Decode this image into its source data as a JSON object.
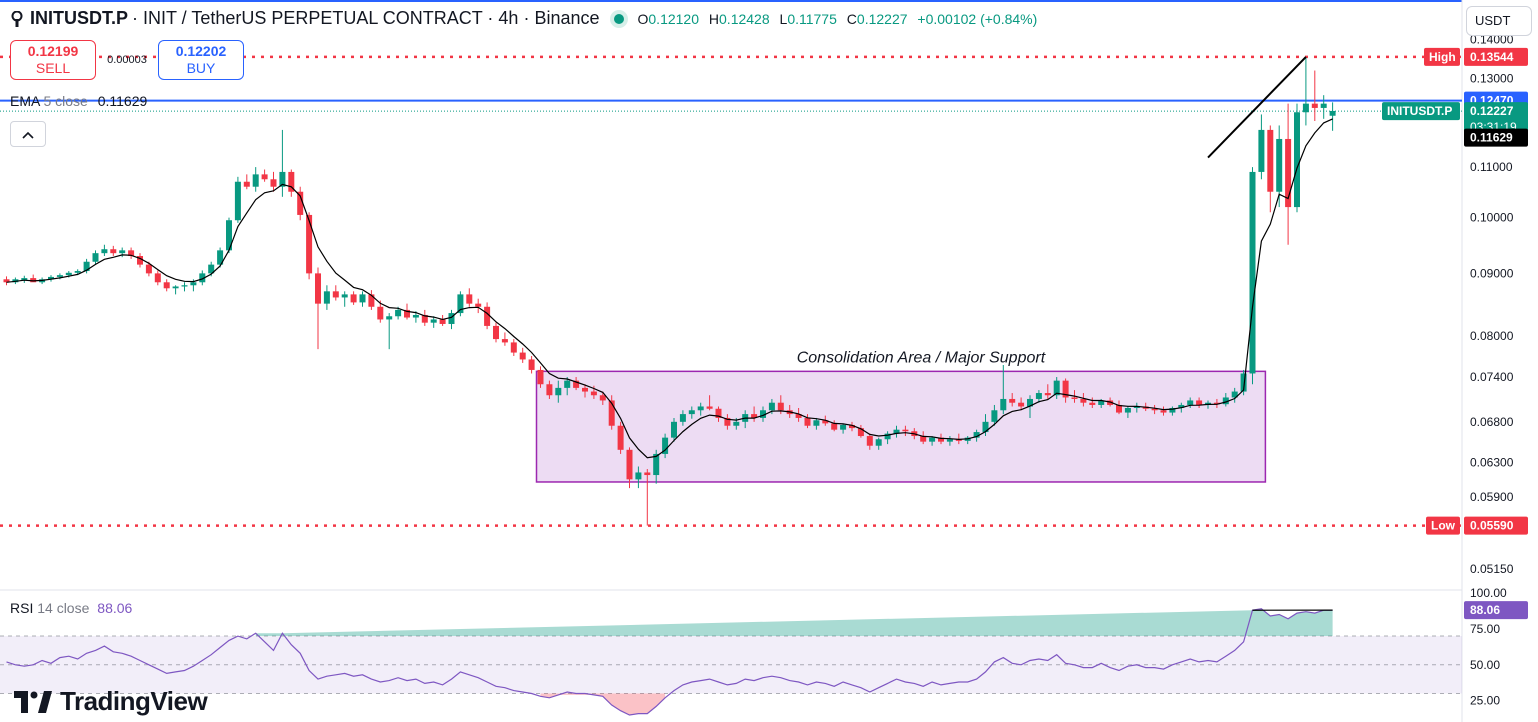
{
  "header": {
    "symbol": "INITUSDT.P",
    "description": "· INIT / TetherUS PERPETUAL CONTRACT · 4h · Binance",
    "open_label": "O",
    "open": "0.12120",
    "high_label": "H",
    "high": "0.12428",
    "low_label": "L",
    "low": "0.11775",
    "close_label": "C",
    "close": "0.12227",
    "change": "+0.00102 (+0.84%)"
  },
  "trade": {
    "sell_price": "0.12199",
    "sell_label": "SELL",
    "spread": "0.00003",
    "buy_price": "0.12202",
    "buy_label": "BUY"
  },
  "currency": "USDT",
  "ema_legend": {
    "name": "EMA",
    "param": "5 close",
    "value": "0.11629"
  },
  "rsi_legend": {
    "name": "RSI",
    "param": "14 close",
    "value": "88.06"
  },
  "brand": "TradingView",
  "colors": {
    "up": "#089981",
    "down": "#f23645",
    "ema": "#000000",
    "rsi": "#7e57c2",
    "box_border": "#9c27b0",
    "box_fill": "#e1c4eb",
    "blue_line": "#2962ff"
  },
  "chart_data": [
    {
      "type": "candlestick",
      "title": "INITUSDT.P · 4h · Binance",
      "y_axis_ticks": [
        "0.14000",
        "0.13000",
        "0.11000",
        "0.10000",
        "0.09000",
        "0.08000",
        "0.07400",
        "0.06800",
        "0.06300",
        "0.05900",
        "0.05150"
      ],
      "ylim": [
        0.0495,
        0.1425
      ],
      "price_labels": [
        {
          "label": "High",
          "value": "0.13544",
          "style": "high",
          "price": 0.13544
        },
        {
          "label": "",
          "value": "0.12470",
          "style": "blue",
          "price": 0.1247
        },
        {
          "label": "INITUSDT.P",
          "value": "0.12227",
          "sub": "03:31:19",
          "style": "last",
          "price": 0.12227
        },
        {
          "label": "",
          "value": "0.11629",
          "style": "ema",
          "price": 0.11629
        },
        {
          "label": "Low",
          "value": "0.05590",
          "style": "low",
          "price": 0.0559
        }
      ],
      "annotations": [
        {
          "text": "Consolidation Area / Major Support",
          "type": "rectangle",
          "price_top": 0.0748,
          "price_bottom": 0.0607,
          "bar_start": 60,
          "bar_end": 141
        }
      ],
      "candles": [
        [
          0.089,
          0.0895,
          0.088,
          0.0885
        ],
        [
          0.0885,
          0.0893,
          0.0882,
          0.089
        ],
        [
          0.0888,
          0.0896,
          0.0884,
          0.0892
        ],
        [
          0.0892,
          0.0898,
          0.0888,
          0.0885
        ],
        [
          0.0885,
          0.0893,
          0.0882,
          0.089
        ],
        [
          0.089,
          0.0897,
          0.0886,
          0.0894
        ],
        [
          0.0894,
          0.09,
          0.089,
          0.0897
        ],
        [
          0.0897,
          0.0904,
          0.0893,
          0.0901
        ],
        [
          0.0901,
          0.0907,
          0.0897,
          0.0904
        ],
        [
          0.0904,
          0.0925,
          0.09,
          0.092
        ],
        [
          0.092,
          0.094,
          0.0915,
          0.0935
        ],
        [
          0.0935,
          0.095,
          0.093,
          0.0942
        ],
        [
          0.0942,
          0.0948,
          0.093,
          0.0935
        ],
        [
          0.0935,
          0.0945,
          0.0928,
          0.094
        ],
        [
          0.094,
          0.0945,
          0.0925,
          0.093
        ],
        [
          0.093,
          0.0935,
          0.091,
          0.0915
        ],
        [
          0.0915,
          0.092,
          0.0895,
          0.09
        ],
        [
          0.09,
          0.0905,
          0.088,
          0.0885
        ],
        [
          0.0885,
          0.089,
          0.087,
          0.0875
        ],
        [
          0.0875,
          0.088,
          0.0865,
          0.0878
        ],
        [
          0.0878,
          0.0885,
          0.087,
          0.088
        ],
        [
          0.088,
          0.089,
          0.087,
          0.0885
        ],
        [
          0.0885,
          0.0905,
          0.088,
          0.09
        ],
        [
          0.09,
          0.092,
          0.0895,
          0.0915
        ],
        [
          0.0915,
          0.0945,
          0.091,
          0.094
        ],
        [
          0.094,
          0.1,
          0.0935,
          0.0995
        ],
        [
          0.0995,
          0.108,
          0.099,
          0.107
        ],
        [
          0.107,
          0.1085,
          0.1055,
          0.106
        ],
        [
          0.106,
          0.11,
          0.105,
          0.1085
        ],
        [
          0.1085,
          0.1095,
          0.107,
          0.1075
        ],
        [
          0.1075,
          0.109,
          0.105,
          0.106
        ],
        [
          0.106,
          0.118,
          0.104,
          0.109
        ],
        [
          0.109,
          0.1095,
          0.104,
          0.105
        ],
        [
          0.105,
          0.106,
          0.0995,
          0.1005
        ],
        [
          0.1005,
          0.101,
          0.089,
          0.09
        ],
        [
          0.09,
          0.091,
          0.078,
          0.085
        ],
        [
          0.085,
          0.088,
          0.084,
          0.087
        ],
        [
          0.087,
          0.088,
          0.0855,
          0.086
        ],
        [
          0.086,
          0.087,
          0.0845,
          0.0865
        ],
        [
          0.0865,
          0.087,
          0.0848,
          0.0852
        ],
        [
          0.0852,
          0.087,
          0.0845,
          0.0865
        ],
        [
          0.0865,
          0.0872,
          0.084,
          0.0845
        ],
        [
          0.0845,
          0.0855,
          0.082,
          0.0825
        ],
        [
          0.0825,
          0.0835,
          0.078,
          0.083
        ],
        [
          0.083,
          0.0845,
          0.0825,
          0.084
        ],
        [
          0.084,
          0.085,
          0.0825,
          0.0828
        ],
        [
          0.0828,
          0.0838,
          0.082,
          0.0832
        ],
        [
          0.0832,
          0.084,
          0.0815,
          0.082
        ],
        [
          0.082,
          0.083,
          0.0812,
          0.0825
        ],
        [
          0.0825,
          0.0832,
          0.0815,
          0.0818
        ],
        [
          0.0818,
          0.084,
          0.081,
          0.0835
        ],
        [
          0.0835,
          0.087,
          0.083,
          0.0865
        ],
        [
          0.0865,
          0.0875,
          0.0845,
          0.085
        ],
        [
          0.085,
          0.0858,
          0.0835,
          0.0845
        ],
        [
          0.0845,
          0.0852,
          0.081,
          0.0815
        ],
        [
          0.0815,
          0.082,
          0.079,
          0.0795
        ],
        [
          0.0795,
          0.0805,
          0.0785,
          0.079
        ],
        [
          0.079,
          0.0795,
          0.077,
          0.0775
        ],
        [
          0.0775,
          0.0782,
          0.076,
          0.0765
        ],
        [
          0.0765,
          0.077,
          0.0745,
          0.075
        ],
        [
          0.075,
          0.0755,
          0.0725,
          0.073
        ],
        [
          0.073,
          0.0735,
          0.071,
          0.0715
        ],
        [
          0.0715,
          0.0735,
          0.0705,
          0.0725
        ],
        [
          0.0725,
          0.074,
          0.0715,
          0.0735
        ],
        [
          0.0735,
          0.074,
          0.0722,
          0.0725
        ],
        [
          0.0725,
          0.073,
          0.0712,
          0.072
        ],
        [
          0.072,
          0.0728,
          0.071,
          0.0715
        ],
        [
          0.0715,
          0.072,
          0.0702,
          0.0708
        ],
        [
          0.0708,
          0.0715,
          0.067,
          0.0675
        ],
        [
          0.0675,
          0.068,
          0.064,
          0.0645
        ],
        [
          0.0645,
          0.0648,
          0.06,
          0.061
        ],
        [
          0.061,
          0.0625,
          0.06,
          0.0618
        ],
        [
          0.0618,
          0.0622,
          0.0559,
          0.0615
        ],
        [
          0.0615,
          0.0645,
          0.0605,
          0.064
        ],
        [
          0.064,
          0.0665,
          0.0635,
          0.066
        ],
        [
          0.066,
          0.0685,
          0.0655,
          0.068
        ],
        [
          0.068,
          0.0695,
          0.0675,
          0.069
        ],
        [
          0.069,
          0.07,
          0.0684,
          0.0695
        ],
        [
          0.0695,
          0.0705,
          0.0688,
          0.07
        ],
        [
          0.07,
          0.0715,
          0.0695,
          0.0697
        ],
        [
          0.0697,
          0.07,
          0.068,
          0.0685
        ],
        [
          0.0685,
          0.069,
          0.067,
          0.0675
        ],
        [
          0.0675,
          0.0685,
          0.067,
          0.068
        ],
        [
          0.068,
          0.0695,
          0.0672,
          0.069
        ],
        [
          0.069,
          0.07,
          0.068,
          0.0685
        ],
        [
          0.0685,
          0.07,
          0.068,
          0.0695
        ],
        [
          0.0695,
          0.071,
          0.069,
          0.0705
        ],
        [
          0.0705,
          0.0715,
          0.069,
          0.0695
        ],
        [
          0.0695,
          0.0702,
          0.0685,
          0.069
        ],
        [
          0.069,
          0.0698,
          0.068,
          0.0685
        ],
        [
          0.0685,
          0.069,
          0.0672,
          0.0675
        ],
        [
          0.0675,
          0.0685,
          0.067,
          0.0682
        ],
        [
          0.0682,
          0.0688,
          0.0675,
          0.0678
        ],
        [
          0.0678,
          0.0682,
          0.0668,
          0.067
        ],
        [
          0.067,
          0.0678,
          0.0665,
          0.0676
        ],
        [
          0.0676,
          0.068,
          0.0668,
          0.0672
        ],
        [
          0.0672,
          0.0676,
          0.066,
          0.0662
        ],
        [
          0.0662,
          0.0665,
          0.0645,
          0.065
        ],
        [
          0.065,
          0.066,
          0.0645,
          0.0658
        ],
        [
          0.0658,
          0.0668,
          0.0652,
          0.0665
        ],
        [
          0.0665,
          0.0675,
          0.066,
          0.067
        ],
        [
          0.067,
          0.0675,
          0.0662,
          0.0668
        ],
        [
          0.0668,
          0.0672,
          0.0658,
          0.0662
        ],
        [
          0.0662,
          0.0668,
          0.0652,
          0.0655
        ],
        [
          0.0655,
          0.0662,
          0.065,
          0.066
        ],
        [
          0.066,
          0.0665,
          0.0652,
          0.0655
        ],
        [
          0.0655,
          0.0662,
          0.065,
          0.0658
        ],
        [
          0.0658,
          0.0665,
          0.0652,
          0.0656
        ],
        [
          0.0656,
          0.0662,
          0.0652,
          0.066
        ],
        [
          0.066,
          0.067,
          0.0655,
          0.0667
        ],
        [
          0.0667,
          0.069,
          0.0662,
          0.068
        ],
        [
          0.068,
          0.0702,
          0.0675,
          0.0695
        ],
        [
          0.0695,
          0.0757,
          0.069,
          0.071
        ],
        [
          0.071,
          0.0718,
          0.07,
          0.0705
        ],
        [
          0.0705,
          0.0712,
          0.0695,
          0.07
        ],
        [
          0.07,
          0.0715,
          0.0685,
          0.071
        ],
        [
          0.071,
          0.0722,
          0.0705,
          0.0718
        ],
        [
          0.0718,
          0.073,
          0.071,
          0.0715
        ],
        [
          0.0715,
          0.074,
          0.071,
          0.0735
        ],
        [
          0.0735,
          0.0738,
          0.0705,
          0.0712
        ],
        [
          0.0712,
          0.0722,
          0.0705,
          0.071
        ],
        [
          0.071,
          0.0718,
          0.07,
          0.0705
        ],
        [
          0.0705,
          0.0712,
          0.0698,
          0.0702
        ],
        [
          0.0702,
          0.071,
          0.0698,
          0.0708
        ],
        [
          0.0708,
          0.0712,
          0.07,
          0.0702
        ],
        [
          0.0702,
          0.0708,
          0.069,
          0.0692
        ],
        [
          0.0692,
          0.07,
          0.0685,
          0.0698
        ],
        [
          0.0698,
          0.0705,
          0.0692,
          0.07
        ],
        [
          0.07,
          0.0705,
          0.0694,
          0.0697
        ],
        [
          0.0697,
          0.0702,
          0.069,
          0.0695
        ],
        [
          0.0695,
          0.07,
          0.0688,
          0.0692
        ],
        [
          0.0692,
          0.07,
          0.0688,
          0.0698
        ],
        [
          0.0698,
          0.0705,
          0.0692,
          0.0702
        ],
        [
          0.0702,
          0.0712,
          0.0698,
          0.0708
        ],
        [
          0.0708,
          0.0712,
          0.0698,
          0.0702
        ],
        [
          0.0702,
          0.0708,
          0.0697,
          0.0705
        ],
        [
          0.0705,
          0.071,
          0.0698,
          0.0703
        ],
        [
          0.0703,
          0.0718,
          0.07,
          0.0712
        ],
        [
          0.0712,
          0.0725,
          0.0705,
          0.072
        ],
        [
          0.072,
          0.075,
          0.0715,
          0.0745
        ],
        [
          0.0745,
          0.11,
          0.073,
          0.109
        ],
        [
          0.109,
          0.1215,
          0.1075,
          0.118
        ],
        [
          0.118,
          0.119,
          0.101,
          0.105
        ],
        [
          0.105,
          0.119,
          0.102,
          0.116
        ],
        [
          0.116,
          0.124,
          0.095,
          0.102
        ],
        [
          0.102,
          0.124,
          0.101,
          0.122
        ],
        [
          0.122,
          0.1354,
          0.119,
          0.124
        ],
        [
          0.124,
          0.132,
          0.12,
          0.123
        ],
        [
          0.123,
          0.126,
          0.1205,
          0.124
        ],
        [
          0.1212,
          0.1243,
          0.1178,
          0.1223
        ]
      ]
    },
    {
      "type": "line",
      "title": "RSI 14 close",
      "y_axis_ticks": [
        "100.00",
        "75.00",
        "50.00",
        "25.00"
      ],
      "ylim": [
        15,
        100
      ],
      "bands": [
        70,
        30
      ],
      "last_value": 88.06,
      "values": [
        52,
        50,
        49,
        50,
        53,
        51,
        55,
        56,
        54,
        58,
        60,
        63,
        59,
        58,
        56,
        53,
        50,
        47,
        44,
        45,
        46,
        49,
        53,
        57,
        62,
        67,
        70,
        68,
        72,
        66,
        60,
        72,
        64,
        58,
        46,
        40,
        42,
        43,
        44,
        42,
        43,
        40,
        38,
        39,
        41,
        39,
        40,
        37,
        38,
        36,
        40,
        45,
        43,
        41,
        38,
        35,
        34,
        32,
        31,
        30,
        28,
        27,
        29,
        31,
        30,
        30,
        29,
        28,
        22,
        18,
        15,
        16,
        16,
        21,
        27,
        32,
        36,
        38,
        39,
        40,
        38,
        36,
        37,
        40,
        39,
        41,
        42,
        41,
        39,
        38,
        36,
        38,
        37,
        35,
        38,
        36,
        34,
        31,
        34,
        37,
        40,
        38,
        37,
        35,
        38,
        36,
        37,
        38,
        38,
        40,
        45,
        52,
        55,
        51,
        50,
        53,
        54,
        53,
        57,
        51,
        50,
        48,
        48,
        51,
        48,
        46,
        49,
        50,
        48,
        48,
        47,
        50,
        52,
        54,
        52,
        53,
        52,
        56,
        60,
        66,
        88,
        89,
        84,
        85,
        82,
        86,
        87,
        86,
        88,
        88.06
      ]
    }
  ]
}
